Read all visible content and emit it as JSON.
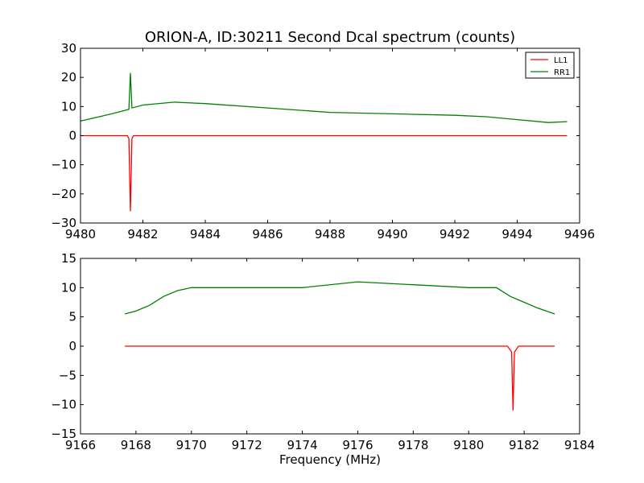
{
  "chart_data": [
    {
      "type": "line",
      "title": "ORION-A, ID:30211 Second Dcal spectrum (counts)",
      "xlabel": "",
      "ylabel": "",
      "xlim": [
        9480,
        9496
      ],
      "ylim": [
        -30,
        30
      ],
      "x_ticks": [
        "9480",
        "9482",
        "9484",
        "9486",
        "9488",
        "9490",
        "9492",
        "9494",
        "9496"
      ],
      "y_ticks": [
        "30",
        "20",
        "10",
        "0",
        "−10",
        "−20",
        "−30"
      ],
      "legend": {
        "position": "top-right",
        "entries": [
          "LL1",
          "RR1"
        ]
      },
      "series": [
        {
          "name": "LL1",
          "color": "#ff0000",
          "x": [
            9480.0,
            9481.5,
            9481.55,
            9481.6,
            9481.65,
            9481.7,
            9483,
            9486,
            9490,
            9495.6
          ],
          "y": [
            0.0,
            0.0,
            -1.0,
            -26.0,
            -1.0,
            0.0,
            0.0,
            0.0,
            0.0,
            0.0
          ]
        },
        {
          "name": "RR1",
          "color": "#008000",
          "x": [
            9480.0,
            9481.0,
            9481.55,
            9481.6,
            9481.65,
            9482.0,
            9483.0,
            9484.0,
            9486.0,
            9488.0,
            9490.0,
            9492.0,
            9493.0,
            9494.0,
            9495.0,
            9495.6
          ],
          "y": [
            5.0,
            7.5,
            9.0,
            21.5,
            9.5,
            10.5,
            11.5,
            11.0,
            9.5,
            8.0,
            7.5,
            7.0,
            6.5,
            5.5,
            4.5,
            4.8
          ]
        }
      ]
    },
    {
      "type": "line",
      "title": "",
      "xlabel": "Frequency (MHz)",
      "ylabel": "",
      "xlim": [
        9166,
        9184
      ],
      "ylim": [
        -15,
        15
      ],
      "x_ticks": [
        "9166",
        "9168",
        "9170",
        "9172",
        "9174",
        "9176",
        "9178",
        "9180",
        "9182",
        "9184"
      ],
      "y_ticks": [
        "15",
        "10",
        "5",
        "0",
        "−5",
        "−10",
        "−15"
      ],
      "series": [
        {
          "name": "LL1",
          "color": "#ff0000",
          "x": [
            9167.6,
            9171.0,
            9176.0,
            9181.4,
            9181.55,
            9181.6,
            9181.65,
            9181.8,
            9183.1
          ],
          "y": [
            0.0,
            0.0,
            0.0,
            0.0,
            -1.0,
            -11.0,
            -1.0,
            0.0,
            0.0
          ]
        },
        {
          "name": "RR1",
          "color": "#008000",
          "x": [
            9167.6,
            9168.0,
            9168.5,
            9169.0,
            9169.5,
            9170.0,
            9172.0,
            9174.0,
            9176.0,
            9178.0,
            9180.0,
            9181.0,
            9181.5,
            9182.0,
            9182.5,
            9183.1
          ],
          "y": [
            5.5,
            6.0,
            7.0,
            8.5,
            9.5,
            10.0,
            10.0,
            10.0,
            11.0,
            10.5,
            10.0,
            10.0,
            8.5,
            7.5,
            6.5,
            5.5
          ]
        }
      ]
    }
  ]
}
